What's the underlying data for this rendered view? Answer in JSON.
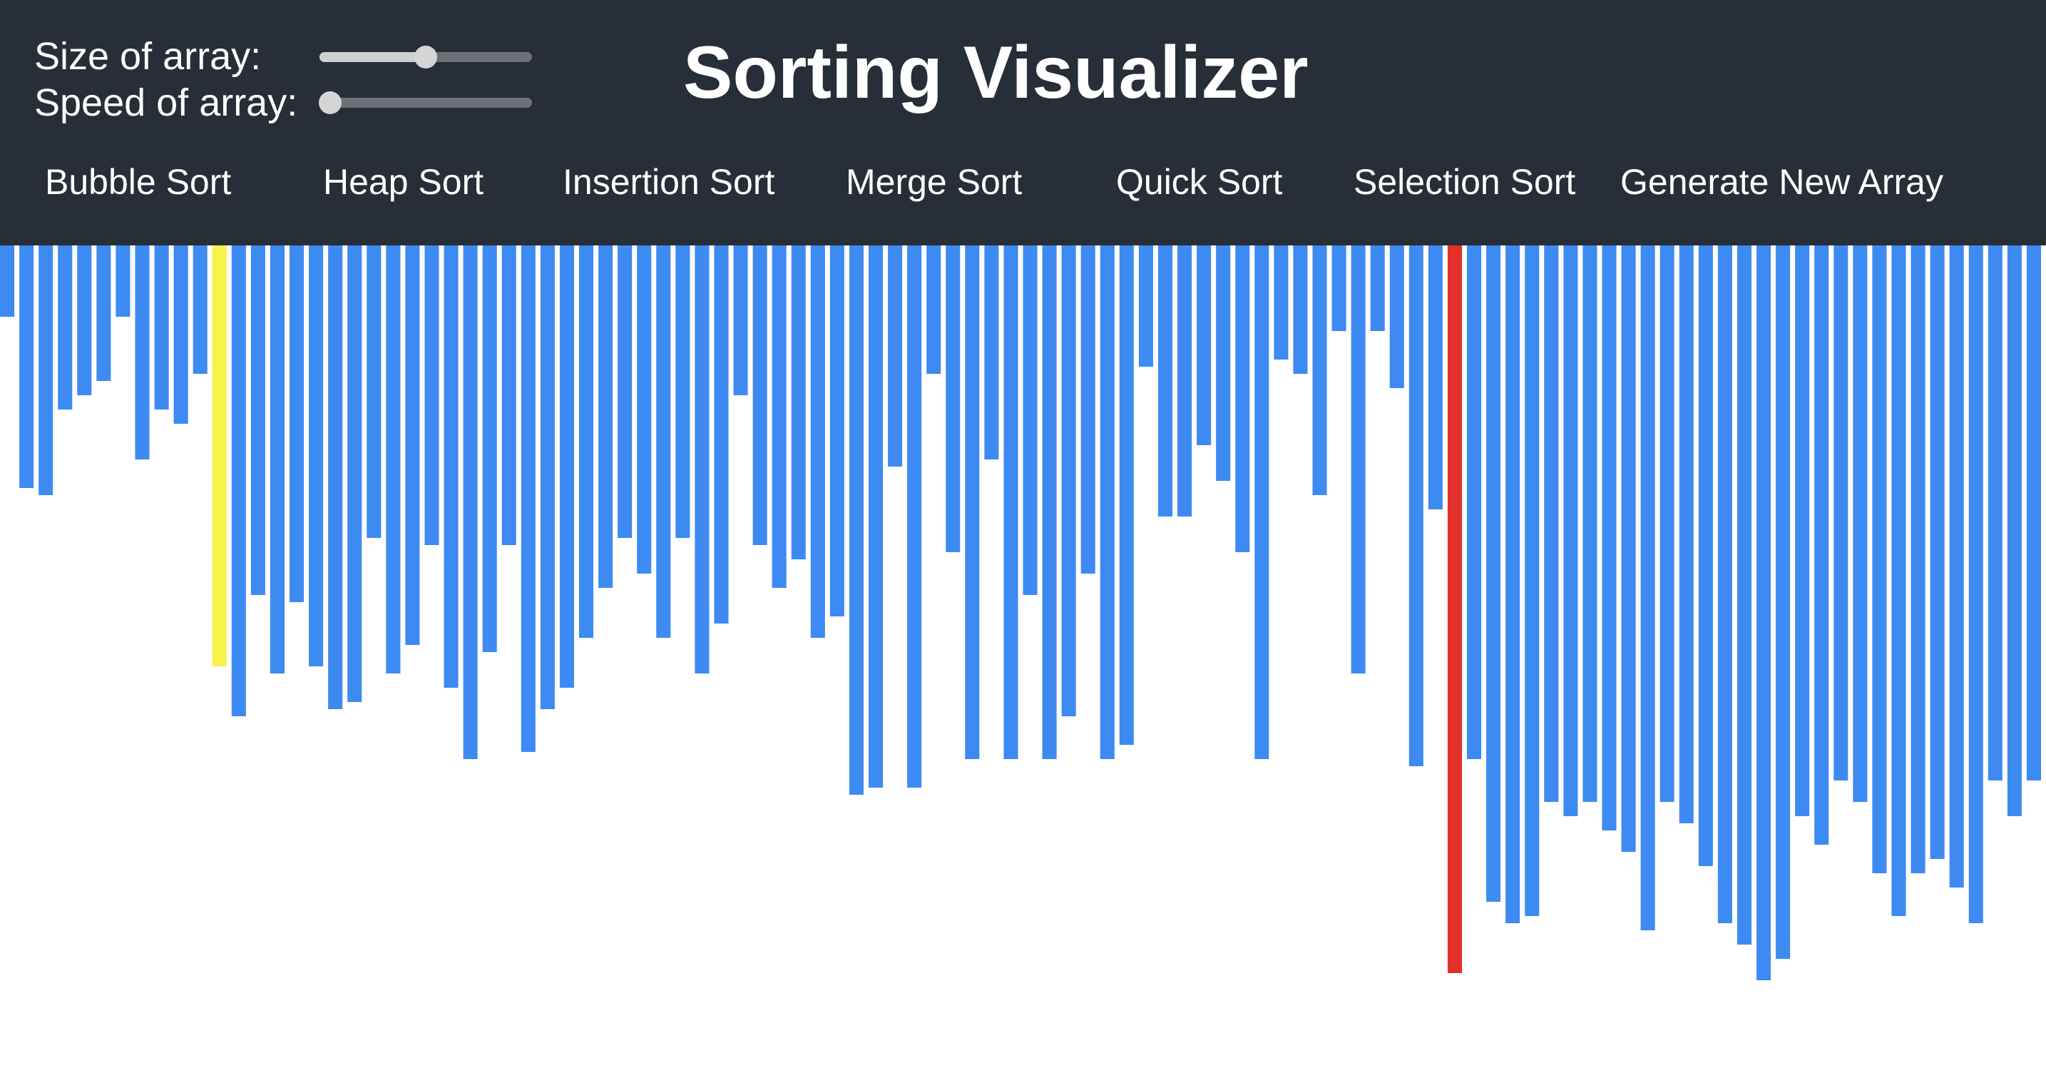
{
  "controls": {
    "size_label": "Size of array:",
    "speed_label": "Speed of array:",
    "size_value": 0.5,
    "speed_value": 0.05
  },
  "title": "Sorting Visualizer",
  "nav": {
    "bubble": "Bubble Sort",
    "heap": "Heap Sort",
    "insertion": "Insertion Sort",
    "merge": "Merge Sort",
    "quick": "Quick Sort",
    "selection": "Selection Sort",
    "generate": "Generate New Array"
  },
  "colors": {
    "header_bg": "#282e37",
    "bar_default": "#3d8af3",
    "bar_compare": "#f7f34b",
    "bar_swap": "#e2302a"
  },
  "chart_data": {
    "type": "bar",
    "values": [
      100,
      340,
      350,
      230,
      210,
      190,
      100,
      300,
      230,
      250,
      180,
      590,
      660,
      490,
      600,
      500,
      590,
      650,
      640,
      410,
      600,
      560,
      420,
      620,
      720,
      570,
      420,
      710,
      650,
      620,
      550,
      480,
      410,
      460,
      550,
      410,
      600,
      530,
      210,
      420,
      480,
      440,
      550,
      520,
      770,
      760,
      310,
      760,
      180,
      430,
      720,
      300,
      720,
      490,
      720,
      660,
      460,
      720,
      700,
      170,
      380,
      380,
      280,
      330,
      430,
      720,
      160,
      180,
      350,
      120,
      600,
      120,
      200,
      730,
      370,
      1020,
      720,
      920,
      950,
      940,
      780,
      800,
      780,
      820,
      850,
      960,
      780,
      810,
      870,
      950,
      980,
      1030,
      1000,
      800,
      840,
      750,
      780,
      880,
      940,
      880,
      860,
      900,
      950,
      750,
      800,
      750
    ],
    "highlight_compare": [
      11
    ],
    "highlight_swap": [
      75
    ]
  }
}
